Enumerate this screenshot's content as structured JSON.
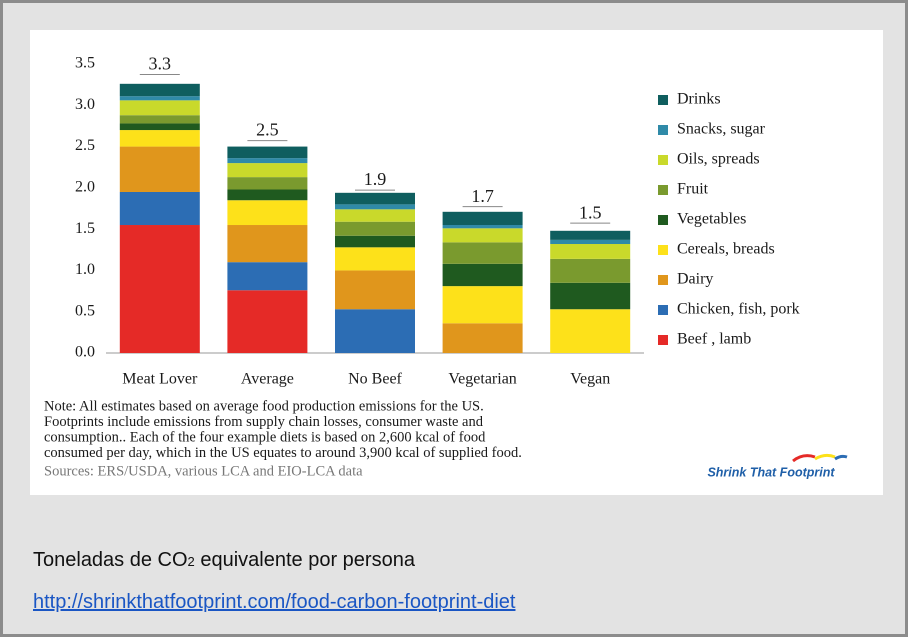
{
  "chart_data": {
    "type": "stacked_bar",
    "categories": [
      "Meat Lover",
      "Average",
      "No Beef",
      "Vegetarian",
      "Vegan"
    ],
    "series": [
      {
        "name": "Beef , lamb",
        "color": "#e52a27",
        "values": [
          1.55,
          0.76,
          0,
          0,
          0
        ]
      },
      {
        "name": "Chicken, fish, pork",
        "color": "#2c6db4",
        "values": [
          0.4,
          0.34,
          0.53,
          0,
          0
        ]
      },
      {
        "name": "Dairy",
        "color": "#e0961c",
        "values": [
          0.55,
          0.45,
          0.47,
          0.36,
          0
        ]
      },
      {
        "name": "Cereals, breads",
        "color": "#fde11a",
        "values": [
          0.2,
          0.3,
          0.28,
          0.45,
          0.53
        ]
      },
      {
        "name": "Vegetables",
        "color": "#1f5a1f",
        "values": [
          0.08,
          0.13,
          0.14,
          0.27,
          0.32
        ]
      },
      {
        "name": "Fruit",
        "color": "#7a9a2e",
        "values": [
          0.1,
          0.15,
          0.17,
          0.26,
          0.29
        ]
      },
      {
        "name": "Oils, spreads",
        "color": "#c9d92b",
        "values": [
          0.18,
          0.17,
          0.15,
          0.17,
          0.18
        ]
      },
      {
        "name": "Snacks, sugar",
        "color": "#2f8aa8",
        "values": [
          0.05,
          0.06,
          0.06,
          0.04,
          0.05
        ]
      },
      {
        "name": "Drinks",
        "color": "#0f5e5f",
        "values": [
          0.15,
          0.14,
          0.14,
          0.16,
          0.11
        ]
      }
    ],
    "totals": [
      3.3,
      2.5,
      1.9,
      1.7,
      1.5
    ],
    "ylim": [
      0,
      3.5
    ],
    "yticks": [
      {
        "value": 0,
        "label": "0.0"
      },
      0.5,
      {
        "value": 1,
        "label": "1.0"
      },
      1.5,
      {
        "value": 2,
        "label": "2.0"
      },
      2.5,
      {
        "value": 3,
        "label": "3.0"
      },
      3.5
    ],
    "grid": false,
    "legend": "right",
    "note": [
      "Note: All estimates based on average food production emissions for the US.",
      "Footprints include emissions from supply chain losses, consumer waste and",
      "consumption..  Each of the four example diets is based on 2,600 kcal of food",
      "consumed per day, which in the US equates to around 3,900 kcal of supplied food."
    ],
    "sources": "Sources:  ERS/USDA, various LCA and EIO-LCA data",
    "logo": "Shrink That Footprint"
  },
  "caption": {
    "prefix": "Toneladas de CO",
    "subscript": "2",
    "suffix": " equivalente por persona",
    "link": "http://shrinkthatfootprint.com/food-carbon-footprint-diet"
  }
}
